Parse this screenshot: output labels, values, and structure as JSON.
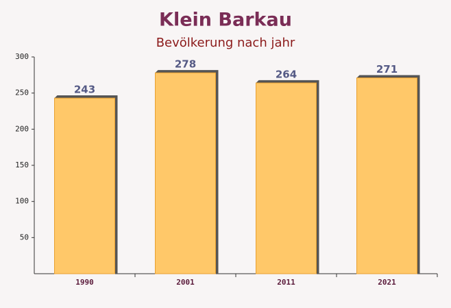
{
  "chart_data": {
    "type": "bar",
    "title": "Klein Barkau",
    "subtitle": "Bevölkerung nach jahr",
    "categories": [
      "1990",
      "2001",
      "2011",
      "2021"
    ],
    "values": [
      243,
      278,
      264,
      271
    ],
    "color": "#ffc35a",
    "ylim": [
      0,
      300
    ],
    "yticks": [
      50,
      100,
      150,
      200,
      250,
      300
    ],
    "grid": false
  }
}
